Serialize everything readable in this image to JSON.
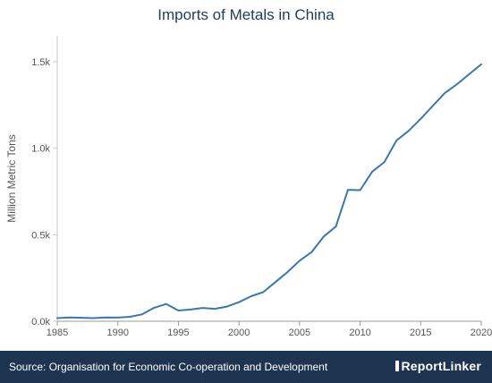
{
  "title": "Imports of Metals in China",
  "footer": {
    "source": "Source: Organisation for Economic Co-operation and Development",
    "brand": "ReportLinker"
  },
  "colors": {
    "line": "#3a78ab",
    "footer_bg": "#1e3552",
    "title": "#1e3d59"
  },
  "chart_data": {
    "type": "line",
    "title": "Imports of Metals in China",
    "xlabel": "",
    "ylabel": "Million Metric Tons",
    "xlim": [
      1985,
      2020
    ],
    "ylim": [
      0,
      1650
    ],
    "xticks": [
      1985,
      1990,
      1995,
      2000,
      2005,
      2010,
      2015,
      2020
    ],
    "xtick_labels": [
      "1985",
      "1990",
      "1995",
      "2000",
      "2005",
      "2010",
      "2015",
      "2020"
    ],
    "yticks": [
      0,
      500,
      1000,
      1500
    ],
    "ytick_labels": [
      "0.0k",
      "0.5k",
      "1.0k",
      "1.5k"
    ],
    "grid": false,
    "series": [
      {
        "x": [
          1985,
          1986,
          1987,
          1988,
          1989,
          1990,
          1991,
          1992,
          1993,
          1994,
          1995,
          1996,
          1997,
          1998,
          1999,
          2000,
          2001,
          2002,
          2003,
          2004,
          2005,
          2006,
          2007,
          2008,
          2009,
          2010,
          2011,
          2012,
          2013,
          2014,
          2015,
          2016,
          2017,
          2018,
          2019,
          2020
        ],
        "y": [
          18,
          22,
          20,
          18,
          22,
          21,
          26,
          40,
          78,
          100,
          62,
          68,
          77,
          72,
          85,
          110,
          145,
          168,
          226,
          284,
          350,
          400,
          490,
          548,
          760,
          758,
          865,
          920,
          1045,
          1100,
          1170,
          1245,
          1320,
          1370,
          1428,
          1485
        ]
      }
    ]
  }
}
